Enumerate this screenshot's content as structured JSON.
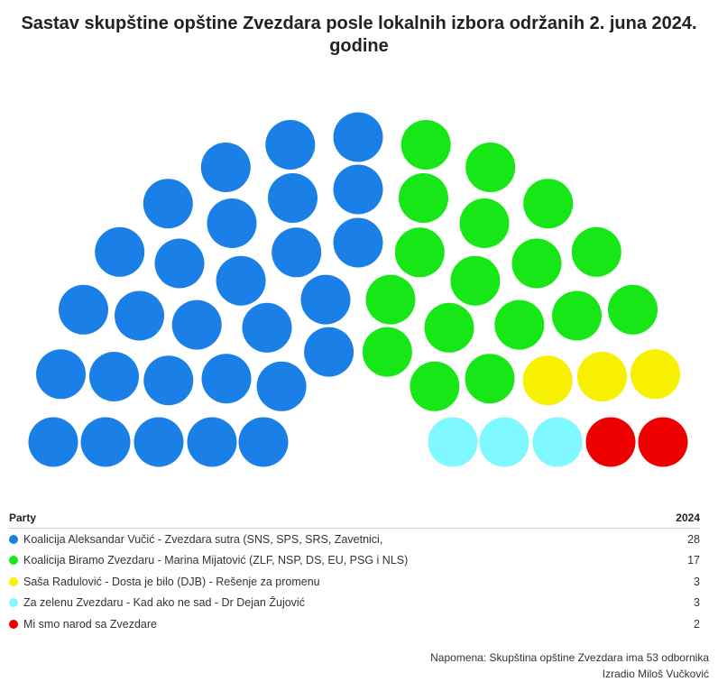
{
  "chart_data": {
    "type": "parliament",
    "title": "Sastav skupštine opštine Zvezdara posle lokalnih izbora održanih 2. juna 2024. godine",
    "total_seats": 53,
    "table_header": {
      "party": "Party",
      "year": "2024"
    },
    "parties": [
      {
        "name": "Koalicija Aleksandar Vučić - Zvezdara sutra (SNS, SPS, SRS, Zavetnici,",
        "seats": 28,
        "color": "#1a7fe6"
      },
      {
        "name": "Koalicija Biramo Zvezdaru - Marina Mijatović (ZLF, NSP, DS, EU, PSG i NLS)",
        "seats": 17,
        "color": "#17e617"
      },
      {
        "name": "Saša Radulović - Dosta je bilo (DJB) - Rešenje za promenu",
        "seats": 3,
        "color": "#f7f000"
      },
      {
        "name": "Za zelenu Zvezdaru - Kad ako ne sad - Dr Dejan Žujović",
        "seats": 3,
        "color": "#80f8ff"
      },
      {
        "name": "Mi smo narod sa Zvezdare",
        "seats": 2,
        "color": "#ee0000"
      }
    ]
  },
  "notes": {
    "line1": "Napomena: Skupština opštine Zvezdara ima 53 odbornika",
    "line2": "Izradio Miloš Vučković"
  }
}
